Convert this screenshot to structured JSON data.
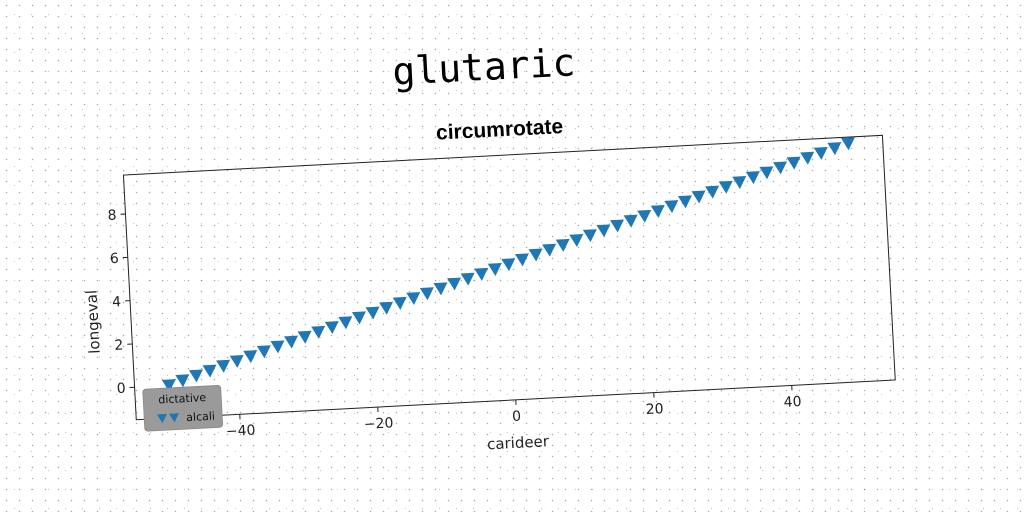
{
  "super_title": "glutaric",
  "chart_data": {
    "type": "scatter",
    "title": "circumrotate",
    "xlabel": "carideer",
    "ylabel": "longeval",
    "xlim": [
      -55,
      55
    ],
    "ylim": [
      -1.5,
      9.8
    ],
    "xticks": [
      -40,
      -20,
      0,
      20,
      40
    ],
    "yticks": [
      0,
      2,
      4,
      6,
      8
    ],
    "grid": false,
    "legend": {
      "title": "dictative",
      "placement": "lower-left",
      "entries": [
        "alcali"
      ]
    },
    "series": [
      {
        "name": "alcali",
        "marker": "triangle-down",
        "color": "#1f77b4",
        "x": [
          -50,
          -48,
          -46,
          -44,
          -42,
          -40,
          -38,
          -36,
          -34,
          -32,
          -30,
          -28,
          -26,
          -24,
          -22,
          -20,
          -18,
          -16,
          -14,
          -12,
          -10,
          -8,
          -6,
          -4,
          -2,
          0,
          2,
          4,
          6,
          8,
          10,
          12,
          14,
          16,
          18,
          20,
          22,
          24,
          26,
          28,
          30,
          32,
          34,
          36,
          38,
          40,
          42,
          44,
          46,
          48,
          50
        ],
        "y": [
          0.0,
          0.19,
          0.38,
          0.57,
          0.76,
          0.95,
          1.14,
          1.33,
          1.52,
          1.71,
          1.9,
          2.09,
          2.28,
          2.47,
          2.66,
          2.85,
          3.04,
          3.23,
          3.42,
          3.61,
          3.8,
          3.99,
          4.18,
          4.37,
          4.56,
          4.75,
          4.94,
          5.13,
          5.32,
          5.51,
          5.7,
          5.89,
          6.08,
          6.27,
          6.46,
          6.65,
          6.84,
          7.03,
          7.22,
          7.41,
          7.6,
          7.79,
          7.98,
          8.17,
          8.36,
          8.55,
          8.74,
          8.93,
          9.12,
          9.31,
          9.5
        ]
      }
    ]
  }
}
